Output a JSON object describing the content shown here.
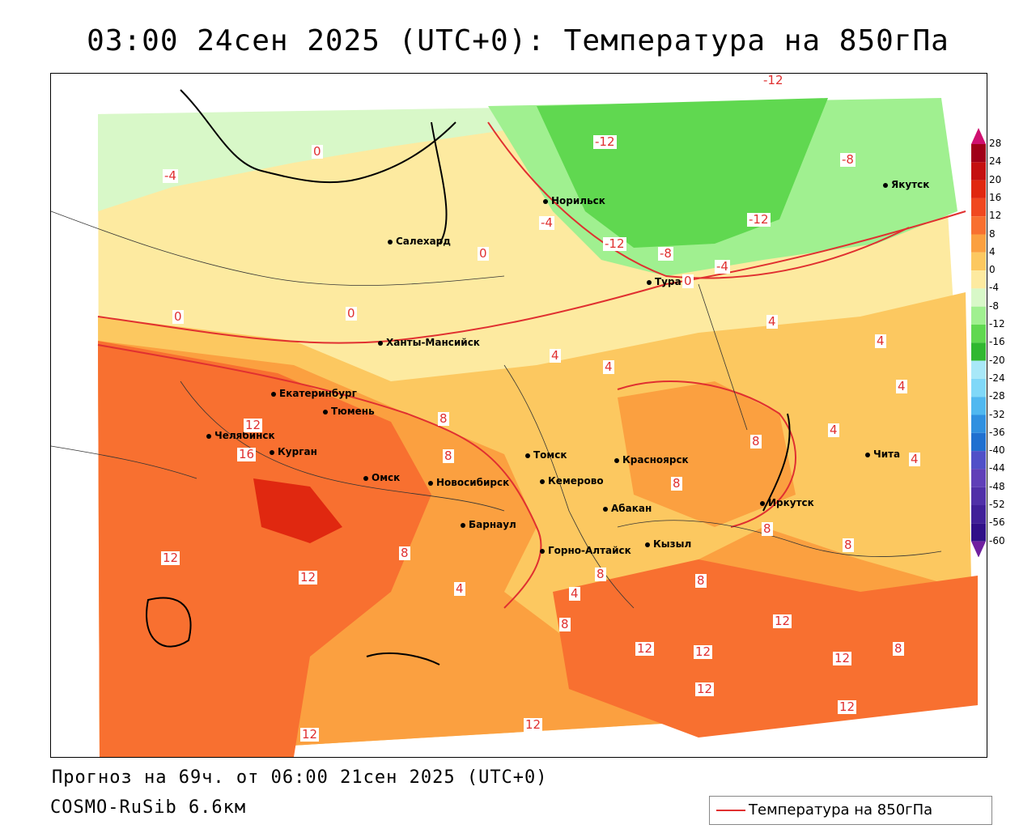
{
  "title": "03:00 24сен 2025 (UTC+0): Температура на 850гПа",
  "forecast_line": "Прогноз на 69ч. от 06:00 21сен 2025 (UTC+0)",
  "model_line": "COSMO-RuSib 6.6км",
  "legend": {
    "label": "Температура на 850гПа",
    "line_color": "#e03030"
  },
  "cities": [
    {
      "name": "Норильск"
    },
    {
      "name": "Якутск"
    },
    {
      "name": "Салехард"
    },
    {
      "name": "Тура"
    },
    {
      "name": "Ханты-Мансийск"
    },
    {
      "name": "Екатеринбург"
    },
    {
      "name": "Тюмень"
    },
    {
      "name": "Челябинск"
    },
    {
      "name": "Курган"
    },
    {
      "name": "Омск"
    },
    {
      "name": "Новосибирск"
    },
    {
      "name": "Томск"
    },
    {
      "name": "Кемерово"
    },
    {
      "name": "Красноярск"
    },
    {
      "name": "Барнаул"
    },
    {
      "name": "Абакан"
    },
    {
      "name": "Иркутск"
    },
    {
      "name": "Чита"
    },
    {
      "name": "Горно-Алтайск"
    },
    {
      "name": "Кызыл"
    }
  ],
  "isolines": [
    {
      "v": "-12"
    },
    {
      "v": "-12"
    },
    {
      "v": "-12"
    },
    {
      "v": "-12"
    },
    {
      "v": "-8"
    },
    {
      "v": "-8"
    },
    {
      "v": "-4"
    },
    {
      "v": "-4"
    },
    {
      "v": "-4"
    },
    {
      "v": "0"
    },
    {
      "v": "0"
    },
    {
      "v": "0"
    },
    {
      "v": "0"
    },
    {
      "v": "0"
    },
    {
      "v": "4"
    },
    {
      "v": "4"
    },
    {
      "v": "4"
    },
    {
      "v": "4"
    },
    {
      "v": "4"
    },
    {
      "v": "4"
    },
    {
      "v": "4"
    },
    {
      "v": "4"
    },
    {
      "v": "4"
    },
    {
      "v": "8"
    },
    {
      "v": "8"
    },
    {
      "v": "8"
    },
    {
      "v": "8"
    },
    {
      "v": "8"
    },
    {
      "v": "8"
    },
    {
      "v": "8"
    },
    {
      "v": "8"
    },
    {
      "v": "8"
    },
    {
      "v": "8"
    },
    {
      "v": "8"
    },
    {
      "v": "12"
    },
    {
      "v": "12"
    },
    {
      "v": "12"
    },
    {
      "v": "16"
    },
    {
      "v": "12"
    },
    {
      "v": "12"
    },
    {
      "v": "12"
    },
    {
      "v": "12"
    },
    {
      "v": "12"
    },
    {
      "v": "12"
    },
    {
      "v": "12"
    },
    {
      "v": "12"
    }
  ],
  "colorbar": {
    "labels": [
      "28",
      "24",
      "20",
      "16",
      "12",
      "8",
      "4",
      "0",
      "-4",
      "-8",
      "-12",
      "-16",
      "-20",
      "-24",
      "-28",
      "-32",
      "-36",
      "-40",
      "-44",
      "-48",
      "-52",
      "-56",
      "-60"
    ],
    "colors": [
      "#a00018",
      "#c41010",
      "#e02810",
      "#f04820",
      "#f87030",
      "#fba040",
      "#fcc860",
      "#fdeaa0",
      "#d8f8c8",
      "#a0f090",
      "#60d850",
      "#30b830",
      "#a8e8f8",
      "#80d8f8",
      "#50b8f0",
      "#3090e0",
      "#2070d0",
      "#5050c8",
      "#6040b8",
      "#5030a8",
      "#402098",
      "#301088"
    ]
  }
}
